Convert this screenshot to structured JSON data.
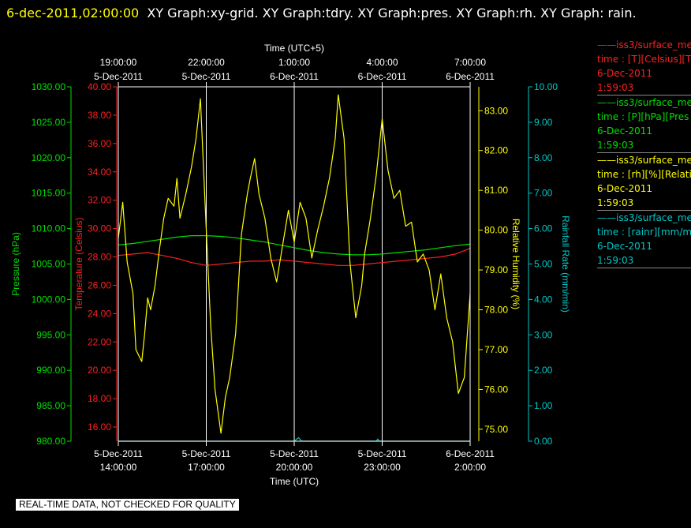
{
  "header": {
    "timestamp": "6-dec-2011,02:00:00",
    "graph_list": "XY Graph:xy-grid.  XY Graph:tdry.  XY Graph:pres.  XY Graph:rh.  XY Graph: rain."
  },
  "disclaimer": "REAL-TIME DATA, NOT CHECKED FOR QUALITY",
  "colors": {
    "temperature": "#ff2020",
    "pressure": "#00e000",
    "humidity": "#ffff00",
    "rain": "#00c8c8",
    "grid": "#ffffff",
    "background": "#000000"
  },
  "legend": [
    {
      "line1": "——iss3/surface_me",
      "line2": "time : [T][Celsius][T",
      "line3": "6-Dec-2011",
      "line4": "1:59:03",
      "color": "#ff2020"
    },
    {
      "line1": "——iss3/surface_me",
      "line2": "time : [P][hPa][Pres",
      "line3": "6-Dec-2011",
      "line4": "1:59:03",
      "color": "#00e000"
    },
    {
      "line1": "——iss3/surface_me",
      "line2": "time : [rh][%][Relati",
      "line3": "6-Dec-2011",
      "line4": "1:59:03",
      "color": "#ffff00"
    },
    {
      "line1": "——iss3/surface_me",
      "line2": "time : [rainr][mm/mi",
      "line3": "6-Dec-2011",
      "line4": "1:59:03",
      "color": "#00c8c8"
    }
  ],
  "chart_data": {
    "type": "line",
    "x_top_title": "Time (UTC+5)",
    "x_bottom_title": "Time (UTC)",
    "x_bottom_ticks": [
      {
        "date": "5-Dec-2011",
        "time": "14:00:00"
      },
      {
        "date": "5-Dec-2011",
        "time": "17:00:00"
      },
      {
        "date": "5-Dec-2011",
        "time": "20:00:00"
      },
      {
        "date": "5-Dec-2011",
        "time": "23:00:00"
      },
      {
        "date": "6-Dec-2011",
        "time": "2:00:00"
      }
    ],
    "x_top_ticks": [
      {
        "time": "19:00:00",
        "date": "5-Dec-2011"
      },
      {
        "time": "22:00:00",
        "date": "5-Dec-2011"
      },
      {
        "time": "1:00:00",
        "date": "6-Dec-2011"
      },
      {
        "time": "4:00:00",
        "date": "6-Dec-2011"
      },
      {
        "time": "7:00:00",
        "date": "6-Dec-2011"
      }
    ],
    "x_hours_range": [
      0,
      12
    ],
    "grid": true,
    "axes": {
      "pressure": {
        "label": "Pressure (hPa)",
        "range": [
          980,
          1030
        ],
        "ticks": [
          "980.00",
          "985.00",
          "990.00",
          "995.00",
          "1000.00",
          "1005.00",
          "1010.00",
          "1015.00",
          "1020.00",
          "1025.00",
          "1030.00"
        ]
      },
      "temperature": {
        "label": "Temperature (Celsius)",
        "range": [
          15,
          40
        ],
        "ticks": [
          "16.00",
          "18.00",
          "20.00",
          "22.00",
          "24.00",
          "26.00",
          "28.00",
          "30.00",
          "32.00",
          "34.00",
          "36.00",
          "38.00",
          "40.00"
        ]
      },
      "humidity": {
        "label": "Relative Humidity (%)",
        "range": [
          74.7,
          83.6
        ],
        "ticks": [
          "75.00",
          "76.00",
          "77.00",
          "78.00",
          "79.00",
          "80.00",
          "81.00",
          "82.00",
          "83.00"
        ]
      },
      "rain": {
        "label": "Rainfall Rate (mm/min)",
        "range": [
          0,
          10
        ],
        "ticks": [
          "0.00",
          "1.00",
          "2.00",
          "3.00",
          "4.00",
          "5.00",
          "6.00",
          "7.00",
          "8.00",
          "9.00",
          "10.00"
        ]
      }
    },
    "series": [
      {
        "key": "temperature",
        "x": [
          0,
          0.5,
          1,
          1.5,
          2,
          2.5,
          3,
          3.5,
          4,
          4.5,
          5,
          5.5,
          6,
          6.5,
          7,
          7.5,
          8,
          8.5,
          9,
          9.5,
          10,
          10.5,
          11,
          11.5,
          12
        ],
        "y": [
          28.1,
          28.2,
          28.3,
          28.1,
          27.9,
          27.6,
          27.4,
          27.5,
          27.6,
          27.7,
          27.7,
          27.8,
          27.7,
          27.6,
          27.5,
          27.4,
          27.4,
          27.5,
          27.6,
          27.7,
          27.8,
          27.9,
          28.0,
          28.2,
          28.6
        ]
      },
      {
        "key": "pressure",
        "x": [
          0,
          0.5,
          1,
          1.5,
          2,
          2.5,
          3,
          3.5,
          4,
          4.5,
          5,
          5.5,
          6,
          6.5,
          7,
          7.5,
          8,
          8.5,
          9,
          9.5,
          10,
          10.5,
          11,
          11.5,
          12
        ],
        "y": [
          1007.7,
          1007.9,
          1008.2,
          1008.5,
          1008.8,
          1009.0,
          1009.0,
          1008.9,
          1008.7,
          1008.4,
          1008.1,
          1007.7,
          1007.3,
          1006.9,
          1006.6,
          1006.4,
          1006.3,
          1006.3,
          1006.4,
          1006.6,
          1006.8,
          1007.0,
          1007.3,
          1007.6,
          1007.8
        ]
      },
      {
        "key": "humidity",
        "x": [
          0,
          0.15,
          0.3,
          0.5,
          0.6,
          0.8,
          0.9,
          1.0,
          1.1,
          1.25,
          1.4,
          1.55,
          1.7,
          1.9,
          2.0,
          2.1,
          2.3,
          2.5,
          2.65,
          2.8,
          3.0,
          3.15,
          3.3,
          3.5,
          3.65,
          3.8,
          4.0,
          4.2,
          4.4,
          4.5,
          4.65,
          4.8,
          5.0,
          5.2,
          5.4,
          5.6,
          5.8,
          6.0,
          6.2,
          6.4,
          6.6,
          6.8,
          7.0,
          7.2,
          7.4,
          7.5,
          7.7,
          7.9,
          8.1,
          8.3,
          8.4,
          8.6,
          8.8,
          9.0,
          9.2,
          9.4,
          9.6,
          9.8,
          10.0,
          10.2,
          10.4,
          10.6,
          10.8,
          11.0,
          11.2,
          11.4,
          11.6,
          11.8,
          12.0
        ],
        "y": [
          79.8,
          80.7,
          79.2,
          78.4,
          77.0,
          76.7,
          77.4,
          78.3,
          78.0,
          78.6,
          79.5,
          80.3,
          80.8,
          80.6,
          81.3,
          80.3,
          80.9,
          81.6,
          82.3,
          83.3,
          80.0,
          77.6,
          76.0,
          74.9,
          75.8,
          76.3,
          77.4,
          79.9,
          80.9,
          81.3,
          81.8,
          80.9,
          80.3,
          79.3,
          78.7,
          79.6,
          80.5,
          79.7,
          80.7,
          80.3,
          79.3,
          80.0,
          80.6,
          81.3,
          82.3,
          83.4,
          82.3,
          79.2,
          77.8,
          78.6,
          79.4,
          80.3,
          81.4,
          82.8,
          81.5,
          80.8,
          81.0,
          80.1,
          80.2,
          79.2,
          79.4,
          79.0,
          78.0,
          78.9,
          77.8,
          77.2,
          75.9,
          76.3,
          78.4
        ]
      },
      {
        "key": "rain",
        "x": [
          0,
          2,
          4,
          6,
          6.15,
          6.25,
          8,
          8.8,
          8.85,
          8.9,
          10,
          12
        ],
        "y": [
          0,
          0,
          0,
          0,
          0.1,
          0,
          0,
          0,
          0.06,
          0,
          0,
          0
        ]
      }
    ]
  }
}
